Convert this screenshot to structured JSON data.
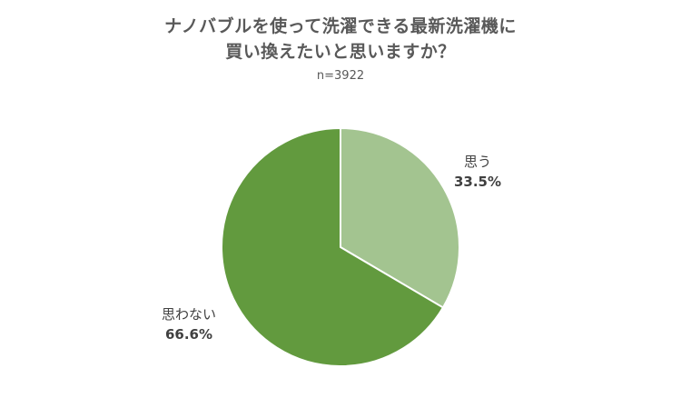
{
  "chart_data": {
    "type": "pie",
    "title_lines": [
      "ナノバブルを使って洗濯できる最新洗濯機に",
      "買い換えたいと思いますか？"
    ],
    "subtitle": "n=3922",
    "slices": [
      {
        "label": "思う",
        "value": 33.5,
        "value_label": "33.5%",
        "color": "#a3c490"
      },
      {
        "label": "思わない",
        "value": 66.6,
        "value_label": "66.6%",
        "color": "#629a3e"
      }
    ],
    "start": "12 o'clock, clockwise",
    "legend": "none"
  }
}
